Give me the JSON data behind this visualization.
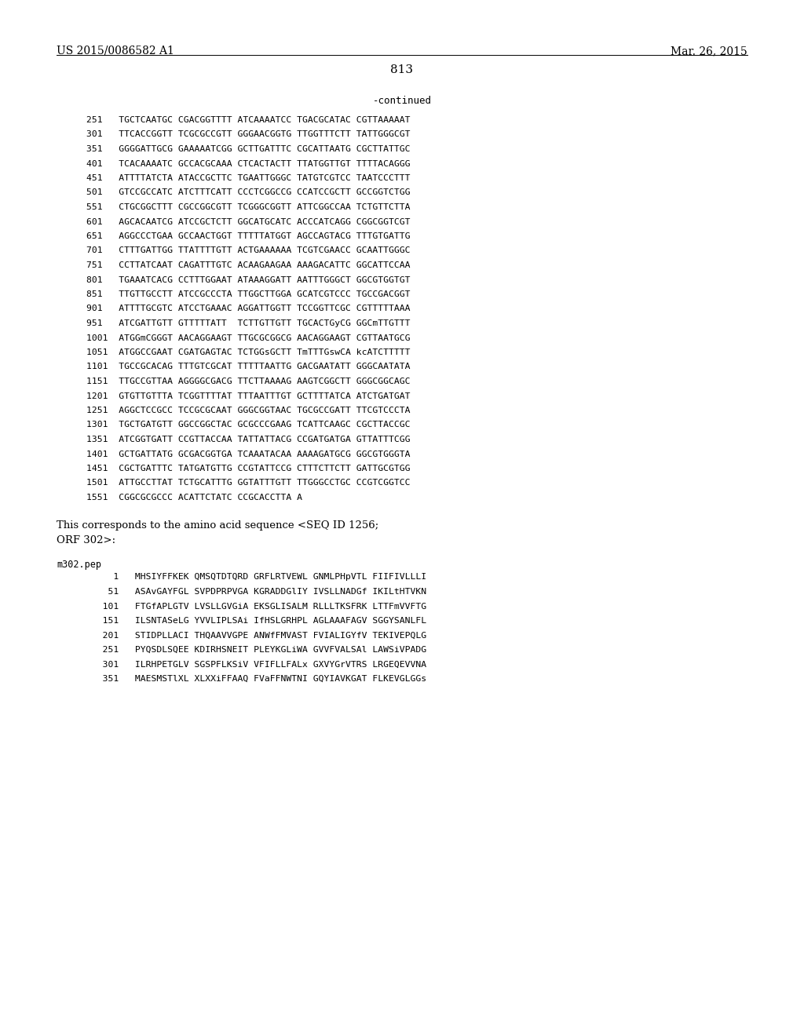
{
  "background_color": "#ffffff",
  "header_left": "US 2015/0086582 A1",
  "header_right": "Mar. 26, 2015",
  "page_number": "813",
  "continued_label": "-continued",
  "dna_lines": [
    "251   TGCTCAATGC CGACGGTTTT ATCAAAATCC TGACGCATAC CGTTAAAAAT",
    "301   TTCACCGGTT TCGCGCCGTT GGGAACGGTG TTGGTTTCTT TATTGGGCGT",
    "351   GGGGATTGCG GAAAAATCGG GCTTGATTTC CGCATTAATG CGCTTATTGC",
    "401   TCACAAAATC GCCACGCAAA CTCACTACTT TTATGGTTGT TTTTACAGGG",
    "451   ATTTTATCTA ATACCGCTTC TGAATTGGGC TATGTCGTCC TAATCCCTTT",
    "501   GTCCGCCATC ATCTTTCATT CCCTCGGCCG CCATCCGCTT GCCGGTCTGG",
    "551   CTGCGGCTTT CGCCGGCGTT TCGGGCGGTT ATTCGGCCAA TCTGTTCTTA",
    "601   AGCACAATCG ATCCGCTCTT GGCATGCATC ACCCATCAGG CGGCGGTCGT",
    "651   AGGCCCTGAA GCCAACTGGT TTTTTATGGT AGCCAGTACG TTTGTGATTG",
    "701   CTTTGATTGG TTATTTTGTT ACTGAAAAAA TCGTCGAACC GCAATTGGGC",
    "751   CCTTATCAAT CAGATTTGTC ACAAGAAGAA AAAGACATTC GGCATTCCAA",
    "801   TGAAATCACG CCTTTGGAAT ATAAAGGATT AATTTGGGCT GGCGTGGTGT",
    "851   TTGTTGCCTT ATCCGCCCTA TTGGCTTGGA GCATCGTCCC TGCCGACGGT",
    "901   ATTTTGCGTC ATCCTGAAAC AGGATTGGTT TCCGGTTCGC CGTTTTTAAA",
    "951   ATCGATTGTT GTTTTTATT  TCTTGTTGTT TGCACTGyCG GGCmTTGTTT",
    "1001  ATGGmCGGGT AACAGGAAGT TTGCGCGGCG AACAGGAAGT CGTTAATGCG",
    "1051  ATGGCCGAAT CGATGAGTAC TCTGGsGCTT TmTTTGswCA kcATCTTTTT",
    "1101  TGCCGCACAG TTTGTCGCAT TTTTTAATTG GACGAATATT GGGCAATATA",
    "1151  TTGCCGTTAA AGGGGCGACG TTCTTAAAAG AAGTCGGCTT GGGCGGCAGC",
    "1201  GTGTTGTTTA TCGGTTTTAT TTTAATTTGT GCTTTTATCA ATCTGATGAT",
    "1251  AGGCTCCGCC TCCGCGCAAT GGGCGGTAAC TGCGCCGATT TTCGTCCCTA",
    "1301  TGCTGATGTT GGCCGGCTAC GCGCCCGAAG TCATTCAAGC CGCTTACCGC",
    "1351  ATCGGTGATT CCGTTACCAA TATTATTACG CCGATGATGA GTTATTTCGG",
    "1401  GCTGATTATG GCGACGGTGA TCAAATACAA AAAAGATGCG GGCGTGGGTA",
    "1451  CGCTGATTTC TATGATGTTG CCGTATTCCG CTTTCTTCTT GATTGCGTGG",
    "1501  ATTGCCTTAT TCTGCATTTG GGTATTTGTT TTGGGCCTGC CCGTCGGTCC",
    "1551  CGGCGCGCCC ACATTCTATC CCGCACCTTA A"
  ],
  "corresponds_text1": "This corresponds to the amino acid sequence <SEQ ID 1256;",
  "corresponds_text2": "ORF 302>:",
  "pep_header": "m302.pep",
  "pep_lines": [
    "     1   MHSIYFFKEK QMSQTDTQRD GRFLRTVEWL GNMLPHpVTL FIIFIVLLLI",
    "    51   ASAvGAYFGL SVPDPRPVGA KGRADDGlIY IVSLLNADGf IKILtHTVKN",
    "   101   FTGfAPLGTV LVSLLGVGiA EKSGLISALM RLLLTKSFRK LTTFmVVFTG",
    "   151   ILSNTASeLG YVVLIPLSAi IfHSLGRHPL AGLAAAFAGV SGGYSANLFL",
    "   201   STIDPLLACI THQAAVVGPE ANWfFMVAST FVIALIGYfV TEKIVEPQLG",
    "   251   PYQSDLSQEE KDIRHSNEIT PLEYKGLiWA GVVFVALSAl LAWSiVPADG",
    "   301   ILRHPETGLV SGSPFLKSiV VFIFLLFALx GXVYGrVTRS LRGEQEVVNA",
    "   351   MAESMSTlXL XLXXiFFAAQ FVaFFNWTNI GQYIAVKGAT FLKEVGLGGs"
  ]
}
